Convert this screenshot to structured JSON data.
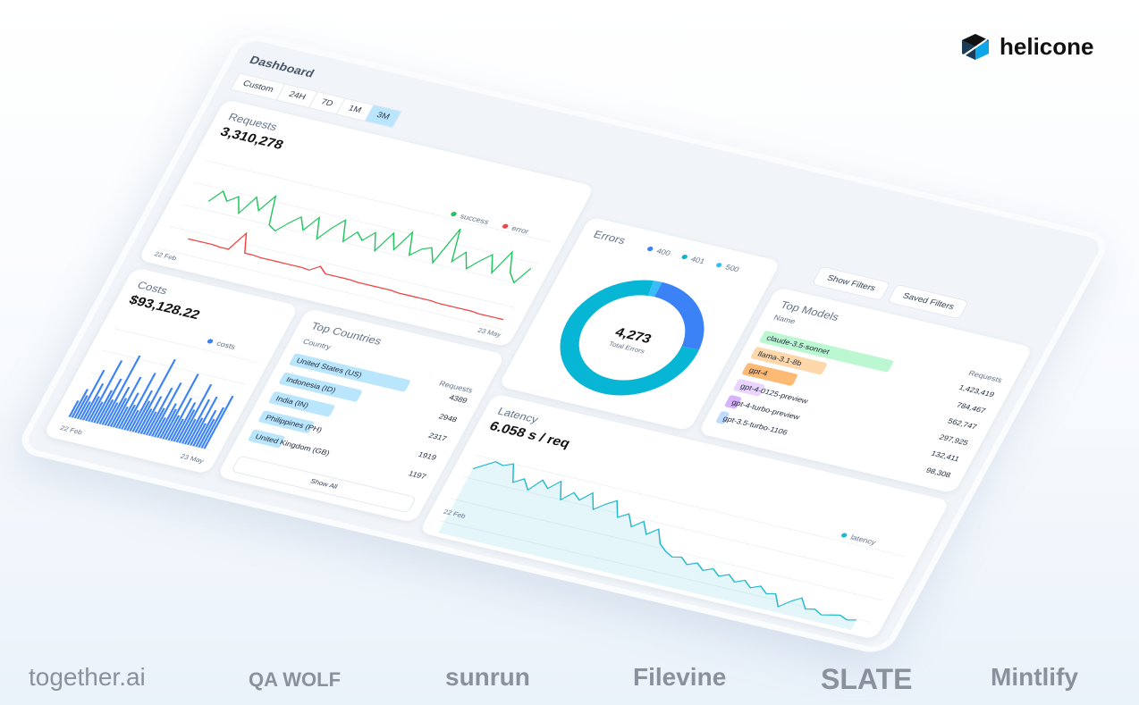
{
  "brand": "helicone",
  "dashboard": {
    "title": "Dashboard",
    "ranges": [
      "Custom",
      "24H",
      "7D",
      "1M",
      "3M"
    ],
    "requests": {
      "title": "Requests",
      "total": "3,310,278",
      "start": "22 Feb",
      "end": "23 May",
      "series": [
        {
          "name": "success",
          "color": "#22c55e",
          "values": [
            55,
            70,
            60,
            68,
            50,
            72,
            58,
            78,
            45,
            40,
            52,
            62,
            48,
            66,
            42,
            58,
            70,
            46,
            60,
            52,
            64,
            44,
            68,
            50,
            74,
            48,
            58,
            62,
            46,
            90,
            52,
            66,
            48,
            60,
            70,
            50,
            78,
            55,
            45,
            65
          ]
        },
        {
          "name": "error",
          "color": "#ef4444",
          "values": [
            9,
            9,
            9,
            9,
            8,
            8,
            30,
            8,
            8,
            7,
            7,
            7,
            7,
            7,
            7,
            6,
            13,
            6,
            6,
            6,
            6,
            5,
            5,
            5,
            5,
            5,
            4,
            4,
            4,
            4,
            4,
            3,
            3,
            3,
            3,
            3,
            2,
            2,
            2,
            2
          ]
        }
      ]
    },
    "costs": {
      "title": "Costs",
      "total": "$93,128.22",
      "start": "22 Feb",
      "end": "23 May",
      "series": [
        {
          "name": "costs",
          "color": "#3b82f6",
          "values": [
            20,
            35,
            28,
            60,
            22,
            45,
            30,
            75,
            25,
            40,
            55,
            30,
            85,
            28,
            48,
            35,
            62,
            26,
            44,
            30,
            70,
            25,
            50,
            38,
            90,
            30,
            46,
            28,
            58,
            34,
            66,
            24,
            42,
            36,
            80,
            30,
            52,
            27,
            48,
            40,
            72,
            30,
            55,
            33,
            60,
            28,
            45,
            35,
            50,
            65
          ]
        }
      ]
    },
    "errors": {
      "title": "Errors",
      "total": "4,273",
      "total_label": "Total Errors",
      "series": [
        {
          "name": "400",
          "color": "#3b82f6",
          "value": 24
        },
        {
          "name": "401",
          "color": "#06b6d4",
          "value": 74
        },
        {
          "name": "500",
          "color": "#38bdf8",
          "value": 2
        }
      ]
    },
    "filters": [
      "Show Filters",
      "Saved Filters"
    ],
    "top_models": {
      "title": "Top Models",
      "name_header": "Name",
      "requests_header": "Requests",
      "names": [
        "claude-3.5-sonnet",
        "llama-3.1-8b",
        "gpt-4",
        "gpt-4-0125-preview",
        "gpt-4-turbo-preview",
        "gpt-3.5-turbo-1106"
      ],
      "colors": [
        "#bbf7d0",
        "#fed7aa",
        "#fdba74",
        "#e9d5ff",
        "#d8b4fe",
        "#bfdbfe"
      ],
      "values": [
        1423419,
        784467,
        562747,
        297925,
        132411,
        98308
      ],
      "value_labels": [
        "1,423,419",
        "784,467",
        "562,747",
        "297,925",
        "132,411",
        "98,308"
      ]
    },
    "top_countries": {
      "title": "Top Countries",
      "name_header": "Country",
      "requests_header": "Requests",
      "names": [
        "United States (US)",
        "Indonesia (ID)",
        "India (IN)",
        "Philippines (PH)",
        "United Kingdom (GB)"
      ],
      "values": [
        4389,
        2948,
        2317,
        1919,
        1197
      ],
      "color": "#bae6fd",
      "button": "Show All"
    },
    "latency": {
      "title": "Latency",
      "total": "6.058 s / req",
      "start": "22 Feb",
      "series": [
        {
          "name": "latency",
          "color": "#22b8cf",
          "values": [
            70,
            76,
            82,
            80,
            84,
            66,
            72,
            62,
            75,
            68,
            78,
            60,
            70,
            64,
            74,
            58,
            66,
            72,
            56,
            62,
            50,
            58,
            46,
            54,
            40,
            34,
            30,
            32,
            26,
            30,
            24,
            28,
            22,
            26,
            20,
            24,
            18,
            22,
            16,
            18,
            6,
            14,
            20,
            10,
            12,
            8,
            10,
            12,
            9,
            11
          ]
        }
      ]
    }
  },
  "logos": [
    "together.ai",
    "QA WOLF",
    "sunrun",
    "Filevine",
    "SLATE",
    "Mintlify"
  ]
}
